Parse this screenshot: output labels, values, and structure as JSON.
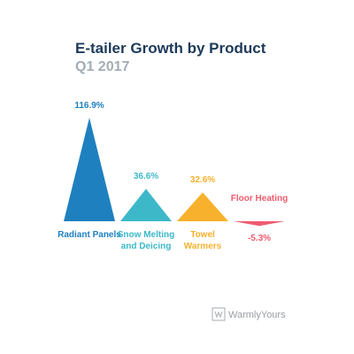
{
  "chart_data": {
    "type": "bar",
    "title": "E-tailer Growth by Product",
    "subtitle": "Q1 2017",
    "categories": [
      "Radiant Panels",
      "Snow Melting and Deicing",
      "Towel Warmers",
      "Floor Heating"
    ],
    "values": [
      116.9,
      36.6,
      32.6,
      -5.3
    ],
    "value_labels": [
      "116.9%",
      "36.6%",
      "32.6%",
      "-5.3%"
    ],
    "colors": [
      "#1f80bf",
      "#3db8c9",
      "#f8b12c",
      "#ee5b6f"
    ]
  },
  "brand": "WarmlyYours"
}
